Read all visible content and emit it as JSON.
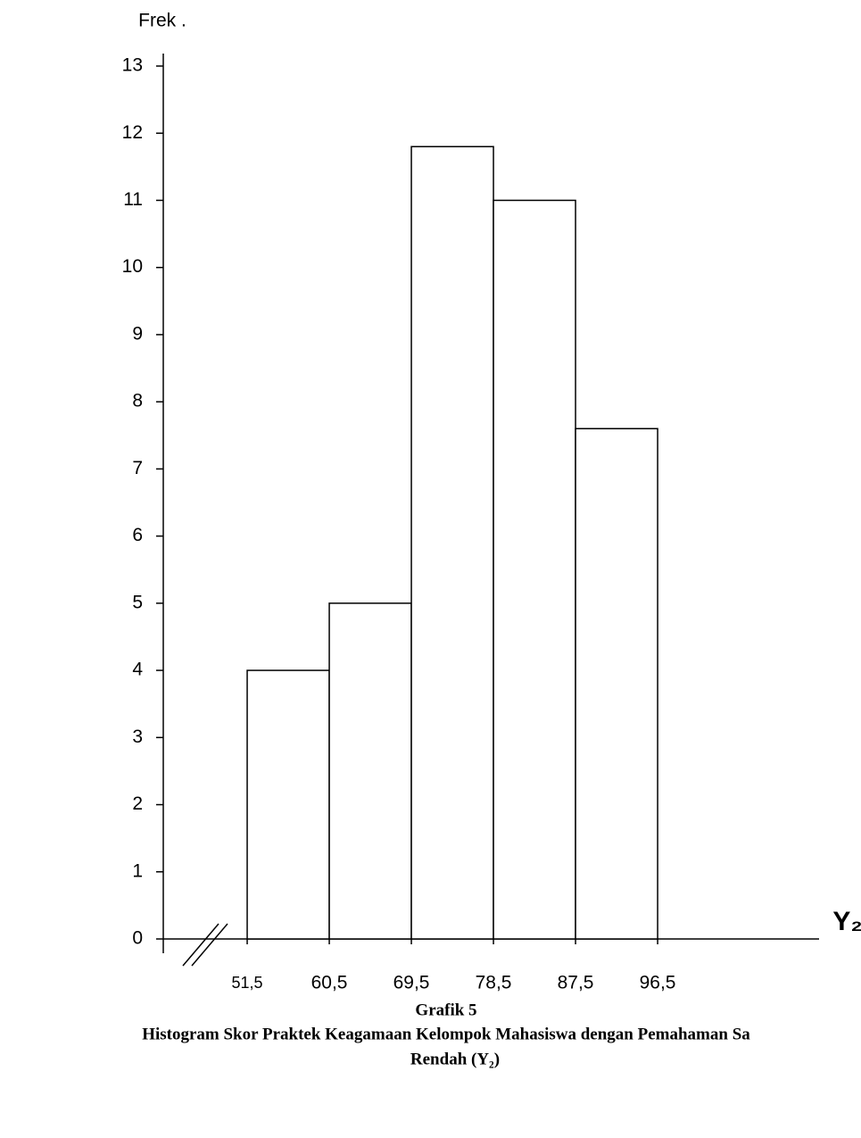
{
  "chart_data": {
    "type": "histogram",
    "title": "Grafik 5",
    "caption": [
      "Histogram Skor Praktek Keagamaan Kelompok Mahasiswa dengan Pemahaman Sa",
      "Rendah (Y₂)"
    ],
    "y_label": "Frek .",
    "x_label": "Y₂",
    "bins": [
      51.5,
      60.5,
      69.5,
      78.5,
      87.5,
      96.5
    ],
    "values": [
      4,
      5,
      11.8,
      11,
      7.6
    ],
    "color": "#ffffff",
    "edge_color": "#000000",
    "xlim": [
      42.3,
      114.2
    ],
    "xticks": [
      {
        "value": 51.5,
        "label": "51,5"
      },
      {
        "value": 60.5,
        "label": "60,5"
      },
      {
        "value": 69.5,
        "label": "69,5"
      },
      {
        "value": 78.5,
        "label": "78,5"
      },
      {
        "value": 87.5,
        "label": "87,5"
      },
      {
        "value": 96.5,
        "label": "96,5"
      }
    ],
    "ylim": [
      0,
      13
    ],
    "yticks": [
      0,
      1,
      2,
      3,
      4,
      5,
      6,
      7,
      8,
      9,
      10,
      11,
      12,
      13
    ],
    "grid": false
  }
}
